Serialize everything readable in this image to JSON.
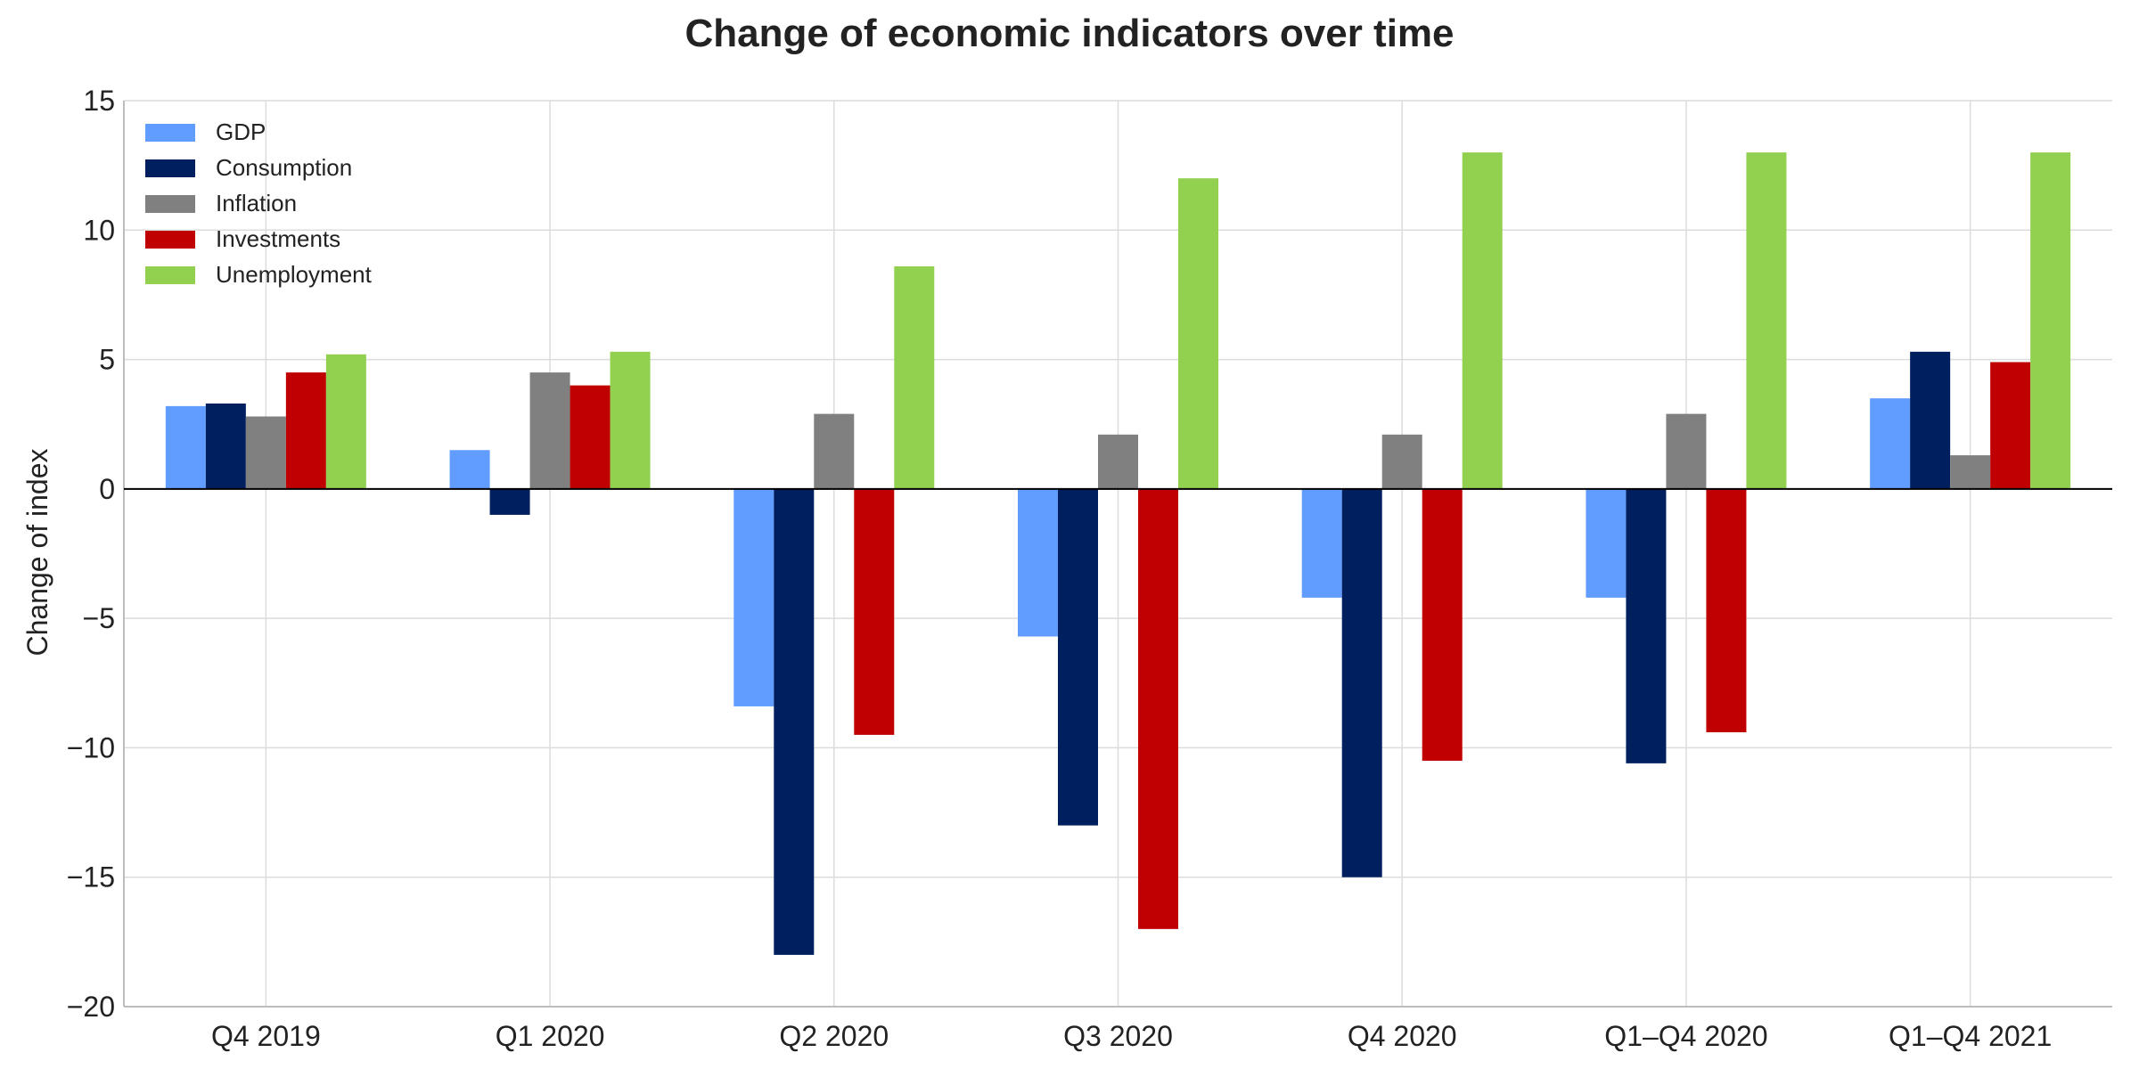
{
  "chart_data": {
    "type": "bar",
    "title": "Change of economic indicators over time",
    "xlabel": "",
    "ylabel": "Change of index",
    "ylim": [
      -20,
      15
    ],
    "yticks": [
      15,
      10,
      5,
      0,
      -5,
      -10,
      -15,
      -20
    ],
    "ytick_labels": [
      "15",
      "10",
      "5",
      "0",
      "−5",
      "−10",
      "−15",
      "−20"
    ],
    "grid": true,
    "legend_position": "top-left",
    "categories": [
      "Q4 2019",
      "Q1 2020",
      "Q2 2020",
      "Q3 2020",
      "Q4 2020",
      "Q1–Q4 2020",
      "Q1–Q4 2021"
    ],
    "series": [
      {
        "name": "GDP",
        "color": "#619cff",
        "values": [
          3.2,
          1.5,
          -8.4,
          -5.7,
          -4.2,
          -4.2,
          3.5
        ]
      },
      {
        "name": "Consumption",
        "color": "#001f5f",
        "values": [
          3.3,
          -1.0,
          -18.0,
          -13.0,
          -15.0,
          -10.6,
          5.3
        ]
      },
      {
        "name": "Inflation",
        "color": "#808080",
        "values": [
          2.8,
          4.5,
          2.9,
          2.1,
          2.1,
          2.9,
          1.3
        ]
      },
      {
        "name": "Investments",
        "color": "#c00000",
        "values": [
          4.5,
          4.0,
          -9.5,
          -17.0,
          -10.5,
          -9.4,
          4.9
        ]
      },
      {
        "name": "Unemployment",
        "color": "#92d050",
        "values": [
          5.2,
          5.3,
          8.6,
          12.0,
          13.0,
          13.0,
          13.0
        ]
      }
    ]
  }
}
